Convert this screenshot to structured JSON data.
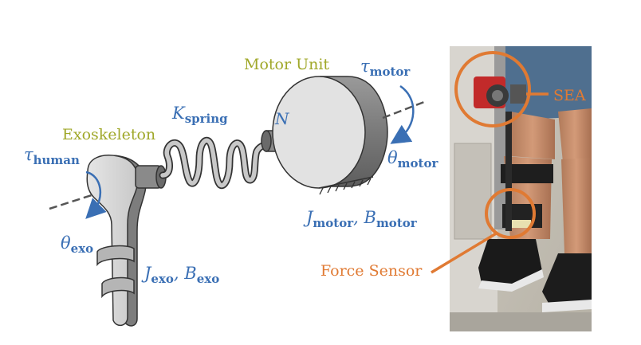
{
  "diagram": {
    "exoskeleton_label": "Exoskeleton",
    "motor_unit_label": "Motor Unit",
    "spring_symbol": "K",
    "spring_sub": "spring",
    "gear_symbol": "N",
    "tau_symbol": "τ",
    "tau_human_sub": "human",
    "tau_motor_sub": "motor",
    "theta_symbol": "θ",
    "theta_exo_sub": "exo",
    "theta_motor_sub": "motor",
    "j_exo_sym": "J",
    "j_exo_sub": "exo",
    "b_exo_sym": "B",
    "b_exo_sub": "exo",
    "sep": ", ",
    "j_motor_sym": "J",
    "j_motor_sub": "motor",
    "b_motor_sym": "B",
    "b_motor_sub": "motor"
  },
  "photo": {
    "sea_label": "SEA",
    "force_sensor_label": "Force Sensor"
  },
  "colors": {
    "olive": "#a0a82a",
    "blue": "#3a6fb4",
    "orange": "#e07a33",
    "body_gray": "#d4d4d4",
    "outline": "#333333"
  }
}
